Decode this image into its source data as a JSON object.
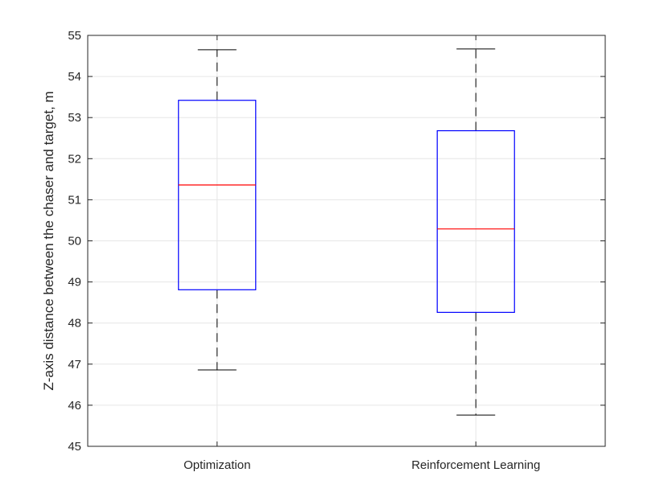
{
  "chart_data": {
    "type": "boxplot",
    "title": "",
    "xlabel": "",
    "ylabel": "Z-axis distance between the chaser and target, m",
    "ylim": [
      45,
      55
    ],
    "yticks": [
      45,
      46,
      47,
      48,
      49,
      50,
      51,
      52,
      53,
      54,
      55
    ],
    "grid": true,
    "categories": [
      "Optimization",
      "Reinforcement Learning"
    ],
    "boxes": [
      {
        "category": "Optimization",
        "whisker_low": 46.86,
        "q1": 48.81,
        "median": 51.36,
        "q3": 53.42,
        "whisker_high": 54.65
      },
      {
        "category": "Reinforcement Learning",
        "whisker_low": 45.76,
        "q1": 48.26,
        "median": 50.29,
        "q3": 52.68,
        "whisker_high": 54.67
      }
    ],
    "colors": {
      "box": "#0000ff",
      "median": "#ff0000",
      "whisker": "#000000",
      "grid": "#e6e6e6",
      "axis": "#262626"
    }
  }
}
